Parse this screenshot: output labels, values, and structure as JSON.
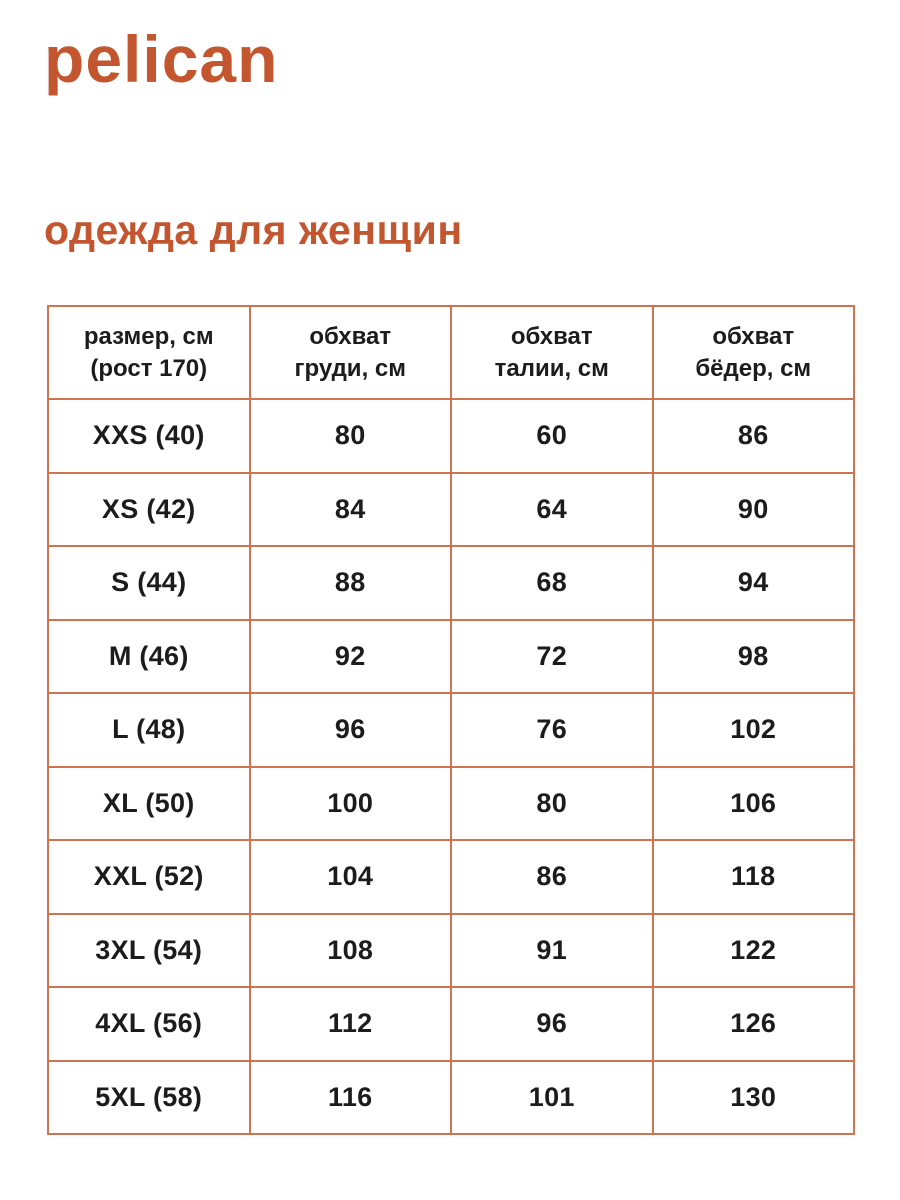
{
  "colors": {
    "brand_orange": "#C3562E",
    "table_border": "#CE7450",
    "text_black": "#1C1C1C",
    "background": "#FFFFFF"
  },
  "logo": {
    "text": "pelican"
  },
  "heading": {
    "text": "одежда для женщин"
  },
  "table": {
    "headers": [
      "размер, см\n(рост 170)",
      "обхват\nгруди, см",
      "обхват\nталии, см",
      "обхват\nбёдер, см"
    ],
    "rows": [
      [
        "XXS (40)",
        "80",
        "60",
        "86"
      ],
      [
        "XS (42)",
        "84",
        "64",
        "90"
      ],
      [
        "S (44)",
        "88",
        "68",
        "94"
      ],
      [
        "M (46)",
        "92",
        "72",
        "98"
      ],
      [
        "L (48)",
        "96",
        "76",
        "102"
      ],
      [
        "XL (50)",
        "100",
        "80",
        "106"
      ],
      [
        "XXL (52)",
        "104",
        "86",
        "118"
      ],
      [
        "3XL (54)",
        "108",
        "91",
        "122"
      ],
      [
        "4XL (56)",
        "112",
        "96",
        "126"
      ],
      [
        "5XL (58)",
        "116",
        "101",
        "130"
      ]
    ]
  },
  "chart_data": {
    "type": "table",
    "title": "одежда для женщин",
    "columns": [
      "размер, см (рост 170)",
      "обхват груди, см",
      "обхват талии, см",
      "обхват бёдер, см"
    ],
    "rows": [
      [
        "XXS (40)",
        80,
        60,
        86
      ],
      [
        "XS (42)",
        84,
        64,
        90
      ],
      [
        "S (44)",
        88,
        68,
        94
      ],
      [
        "M (46)",
        92,
        72,
        98
      ],
      [
        "L (48)",
        96,
        76,
        102
      ],
      [
        "XL (50)",
        100,
        80,
        106
      ],
      [
        "XXL (52)",
        104,
        86,
        118
      ],
      [
        "3XL (54)",
        108,
        91,
        122
      ],
      [
        "4XL (56)",
        112,
        96,
        126
      ],
      [
        "5XL (58)",
        116,
        101,
        130
      ]
    ]
  }
}
